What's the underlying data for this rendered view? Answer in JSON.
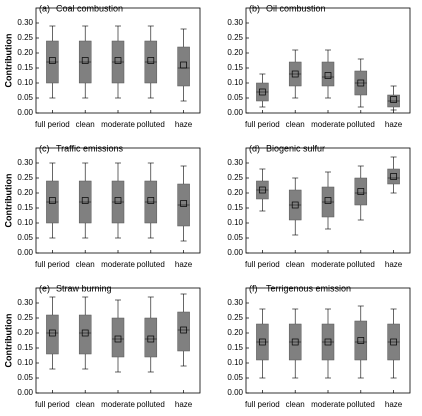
{
  "chart_data": [
    {
      "type": "box",
      "label": "(a)",
      "title": "Coal combustion",
      "ylabel": "Contribution",
      "categories": [
        "full period",
        "clean",
        "moderate",
        "polluted",
        "haze"
      ],
      "whislo": [
        0.05,
        0.05,
        0.05,
        0.05,
        0.04
      ],
      "q1": [
        0.1,
        0.1,
        0.1,
        0.1,
        0.09
      ],
      "med": [
        0.17,
        0.17,
        0.17,
        0.17,
        0.15
      ],
      "q3": [
        0.24,
        0.24,
        0.24,
        0.24,
        0.22
      ],
      "whishi": [
        0.29,
        0.29,
        0.29,
        0.29,
        0.28
      ],
      "mean": [
        0.175,
        0.175,
        0.175,
        0.175,
        0.16
      ],
      "color": "#808080",
      "ylim": [
        0,
        0.35
      ],
      "yticks": [
        {
          "value": 0,
          "label": "0.00"
        },
        {
          "value": 0.05,
          "label": "0.05"
        },
        {
          "value": 0.1,
          "label": "0.10"
        },
        {
          "value": 0.15,
          "label": "0.15"
        },
        {
          "value": 0.2,
          "label": "0.20"
        },
        {
          "value": 0.25,
          "label": "0.25"
        },
        {
          "value": 0.3,
          "label": "0.30"
        }
      ]
    },
    {
      "type": "box",
      "label": "(b)",
      "title": "Oil combustion",
      "categories": [
        "full period",
        "clean",
        "moderate",
        "polluted",
        "haze"
      ],
      "whislo": [
        0.02,
        0.05,
        0.05,
        0.02,
        0.01
      ],
      "q1": [
        0.04,
        0.09,
        0.09,
        0.06,
        0.02
      ],
      "med": [
        0.07,
        0.13,
        0.12,
        0.1,
        0.04
      ],
      "q3": [
        0.1,
        0.17,
        0.17,
        0.14,
        0.06
      ],
      "whishi": [
        0.13,
        0.21,
        0.21,
        0.18,
        0.09
      ],
      "mean": [
        0.07,
        0.13,
        0.125,
        0.1,
        0.045
      ],
      "color": "#808080",
      "ylim": [
        0,
        0.35
      ],
      "yticks": [
        {
          "value": 0,
          "label": "0.00"
        },
        {
          "value": 0.05,
          "label": "0.05"
        },
        {
          "value": 0.1,
          "label": "0.10"
        },
        {
          "value": 0.15,
          "label": "0.15"
        },
        {
          "value": 0.2,
          "label": "0.20"
        },
        {
          "value": 0.25,
          "label": "0.25"
        },
        {
          "value": 0.3,
          "label": "0.30"
        }
      ]
    },
    {
      "type": "box",
      "label": "(c)",
      "title": "Traffic emissions",
      "ylabel": "Contribution",
      "categories": [
        "full period",
        "clean",
        "moderate",
        "polluted",
        "haze"
      ],
      "whislo": [
        0.05,
        0.05,
        0.05,
        0.05,
        0.04
      ],
      "q1": [
        0.1,
        0.1,
        0.1,
        0.1,
        0.09
      ],
      "med": [
        0.17,
        0.17,
        0.17,
        0.17,
        0.16
      ],
      "q3": [
        0.24,
        0.24,
        0.24,
        0.24,
        0.23
      ],
      "whishi": [
        0.3,
        0.3,
        0.3,
        0.3,
        0.29
      ],
      "mean": [
        0.175,
        0.175,
        0.175,
        0.175,
        0.165
      ],
      "color": "#808080",
      "ylim": [
        0,
        0.35
      ],
      "yticks": [
        {
          "value": 0,
          "label": "0.00"
        },
        {
          "value": 0.05,
          "label": "0.05"
        },
        {
          "value": 0.1,
          "label": "0.10"
        },
        {
          "value": 0.15,
          "label": "0.15"
        },
        {
          "value": 0.2,
          "label": "0.20"
        },
        {
          "value": 0.25,
          "label": "0.25"
        },
        {
          "value": 0.3,
          "label": "0.30"
        }
      ]
    },
    {
      "type": "box",
      "label": "(d)",
      "title": "Biogenic sulfur",
      "categories": [
        "full period",
        "clean",
        "moderate",
        "polluted",
        "haze"
      ],
      "whislo": [
        0.14,
        0.06,
        0.08,
        0.11,
        0.2
      ],
      "q1": [
        0.18,
        0.11,
        0.12,
        0.16,
        0.23
      ],
      "med": [
        0.21,
        0.16,
        0.17,
        0.2,
        0.25
      ],
      "q3": [
        0.24,
        0.21,
        0.22,
        0.25,
        0.28
      ],
      "whishi": [
        0.28,
        0.25,
        0.27,
        0.29,
        0.32
      ],
      "mean": [
        0.21,
        0.16,
        0.175,
        0.205,
        0.255
      ],
      "color": "#808080",
      "ylim": [
        0,
        0.35
      ],
      "yticks": [
        {
          "value": 0,
          "label": "0.00"
        },
        {
          "value": 0.05,
          "label": "0.05"
        },
        {
          "value": 0.1,
          "label": "0.10"
        },
        {
          "value": 0.15,
          "label": "0.15"
        },
        {
          "value": 0.2,
          "label": "0.20"
        },
        {
          "value": 0.25,
          "label": "0.25"
        },
        {
          "value": 0.3,
          "label": "0.30"
        }
      ]
    },
    {
      "type": "box",
      "label": "(e)",
      "title": "Straw burning",
      "ylabel": "Contribution",
      "categories": [
        "full period",
        "clean",
        "moderate",
        "polluted",
        "haze"
      ],
      "whislo": [
        0.08,
        0.08,
        0.07,
        0.07,
        0.09
      ],
      "q1": [
        0.13,
        0.13,
        0.12,
        0.12,
        0.14
      ],
      "med": [
        0.2,
        0.2,
        0.18,
        0.18,
        0.21
      ],
      "q3": [
        0.26,
        0.26,
        0.25,
        0.25,
        0.27
      ],
      "whishi": [
        0.32,
        0.32,
        0.31,
        0.32,
        0.33
      ],
      "mean": [
        0.2,
        0.2,
        0.18,
        0.18,
        0.21
      ],
      "color": "#808080",
      "ylim": [
        0,
        0.35
      ],
      "yticks": [
        {
          "value": 0,
          "label": "0.00"
        },
        {
          "value": 0.05,
          "label": "0.05"
        },
        {
          "value": 0.1,
          "label": "0.10"
        },
        {
          "value": 0.15,
          "label": "0.15"
        },
        {
          "value": 0.2,
          "label": "0.20"
        },
        {
          "value": 0.25,
          "label": "0.25"
        },
        {
          "value": 0.3,
          "label": "0.30"
        }
      ]
    },
    {
      "type": "box",
      "label": "(f)",
      "title": "Terrigenous emission",
      "categories": [
        "full period",
        "clean",
        "moderate",
        "polluted",
        "haze"
      ],
      "whislo": [
        0.05,
        0.05,
        0.05,
        0.05,
        0.05
      ],
      "q1": [
        0.11,
        0.11,
        0.11,
        0.11,
        0.11
      ],
      "med": [
        0.17,
        0.17,
        0.17,
        0.17,
        0.17
      ],
      "q3": [
        0.23,
        0.23,
        0.23,
        0.24,
        0.23
      ],
      "whishi": [
        0.28,
        0.28,
        0.28,
        0.29,
        0.28
      ],
      "mean": [
        0.17,
        0.17,
        0.17,
        0.175,
        0.17
      ],
      "color": "#808080",
      "ylim": [
        0,
        0.35
      ],
      "yticks": [
        {
          "value": 0,
          "label": "0.00"
        },
        {
          "value": 0.05,
          "label": "0.05"
        },
        {
          "value": 0.1,
          "label": "0.10"
        },
        {
          "value": 0.15,
          "label": "0.15"
        },
        {
          "value": 0.2,
          "label": "0.20"
        },
        {
          "value": 0.25,
          "label": "0.25"
        },
        {
          "value": 0.3,
          "label": "0.30"
        }
      ]
    }
  ]
}
